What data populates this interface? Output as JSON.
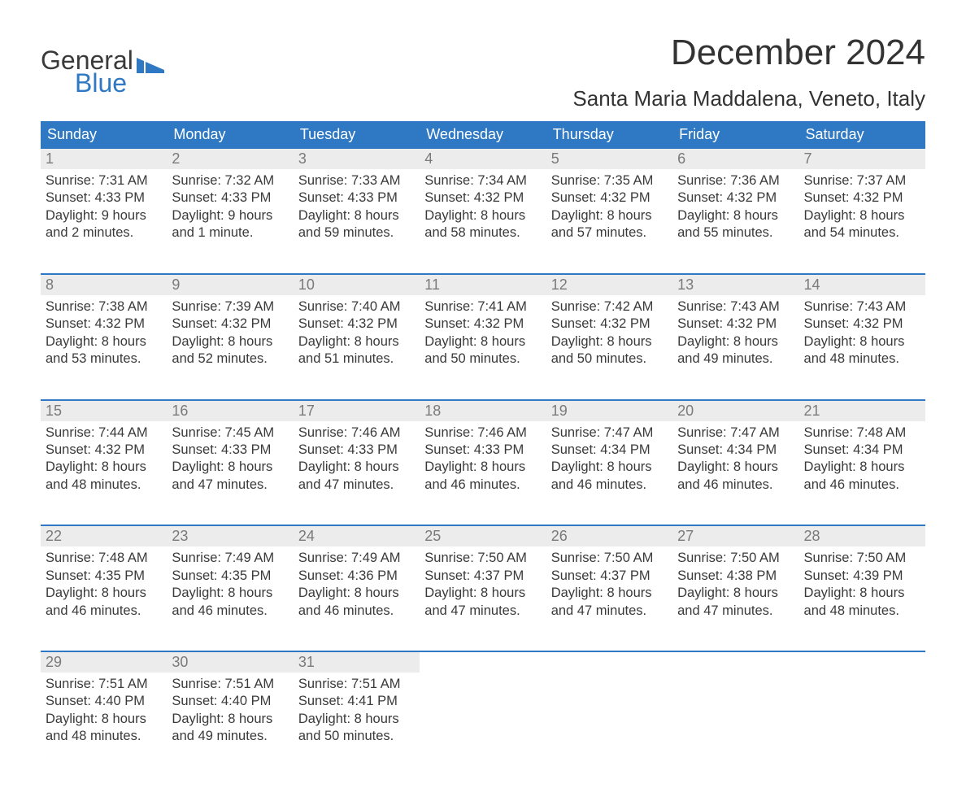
{
  "brand": {
    "line1": "General",
    "line2": "Blue",
    "accent_color": "#2f78c4"
  },
  "title": "December 2024",
  "location": "Santa Maria Maddalena, Veneto, Italy",
  "colors": {
    "header_bg": "#2f78c4",
    "header_text": "#ffffff",
    "daynum_bg": "#ececec",
    "daynum_text": "#7a7a7a",
    "body_text": "#3a3a3a",
    "week_border": "#2f78c4",
    "page_bg": "#ffffff"
  },
  "typography": {
    "title_fontsize": 44,
    "location_fontsize": 26,
    "header_fontsize": 18,
    "daynum_fontsize": 18,
    "detail_fontsize": 16.5,
    "font_family": "Arial"
  },
  "calendar": {
    "type": "table",
    "columns": [
      "Sunday",
      "Monday",
      "Tuesday",
      "Wednesday",
      "Thursday",
      "Friday",
      "Saturday"
    ],
    "weeks": [
      [
        {
          "day": "1",
          "sunrise": "Sunrise: 7:31 AM",
          "sunset": "Sunset: 4:33 PM",
          "dl1": "Daylight: 9 hours",
          "dl2": "and 2 minutes."
        },
        {
          "day": "2",
          "sunrise": "Sunrise: 7:32 AM",
          "sunset": "Sunset: 4:33 PM",
          "dl1": "Daylight: 9 hours",
          "dl2": "and 1 minute."
        },
        {
          "day": "3",
          "sunrise": "Sunrise: 7:33 AM",
          "sunset": "Sunset: 4:33 PM",
          "dl1": "Daylight: 8 hours",
          "dl2": "and 59 minutes."
        },
        {
          "day": "4",
          "sunrise": "Sunrise: 7:34 AM",
          "sunset": "Sunset: 4:32 PM",
          "dl1": "Daylight: 8 hours",
          "dl2": "and 58 minutes."
        },
        {
          "day": "5",
          "sunrise": "Sunrise: 7:35 AM",
          "sunset": "Sunset: 4:32 PM",
          "dl1": "Daylight: 8 hours",
          "dl2": "and 57 minutes."
        },
        {
          "day": "6",
          "sunrise": "Sunrise: 7:36 AM",
          "sunset": "Sunset: 4:32 PM",
          "dl1": "Daylight: 8 hours",
          "dl2": "and 55 minutes."
        },
        {
          "day": "7",
          "sunrise": "Sunrise: 7:37 AM",
          "sunset": "Sunset: 4:32 PM",
          "dl1": "Daylight: 8 hours",
          "dl2": "and 54 minutes."
        }
      ],
      [
        {
          "day": "8",
          "sunrise": "Sunrise: 7:38 AM",
          "sunset": "Sunset: 4:32 PM",
          "dl1": "Daylight: 8 hours",
          "dl2": "and 53 minutes."
        },
        {
          "day": "9",
          "sunrise": "Sunrise: 7:39 AM",
          "sunset": "Sunset: 4:32 PM",
          "dl1": "Daylight: 8 hours",
          "dl2": "and 52 minutes."
        },
        {
          "day": "10",
          "sunrise": "Sunrise: 7:40 AM",
          "sunset": "Sunset: 4:32 PM",
          "dl1": "Daylight: 8 hours",
          "dl2": "and 51 minutes."
        },
        {
          "day": "11",
          "sunrise": "Sunrise: 7:41 AM",
          "sunset": "Sunset: 4:32 PM",
          "dl1": "Daylight: 8 hours",
          "dl2": "and 50 minutes."
        },
        {
          "day": "12",
          "sunrise": "Sunrise: 7:42 AM",
          "sunset": "Sunset: 4:32 PM",
          "dl1": "Daylight: 8 hours",
          "dl2": "and 50 minutes."
        },
        {
          "day": "13",
          "sunrise": "Sunrise: 7:43 AM",
          "sunset": "Sunset: 4:32 PM",
          "dl1": "Daylight: 8 hours",
          "dl2": "and 49 minutes."
        },
        {
          "day": "14",
          "sunrise": "Sunrise: 7:43 AM",
          "sunset": "Sunset: 4:32 PM",
          "dl1": "Daylight: 8 hours",
          "dl2": "and 48 minutes."
        }
      ],
      [
        {
          "day": "15",
          "sunrise": "Sunrise: 7:44 AM",
          "sunset": "Sunset: 4:32 PM",
          "dl1": "Daylight: 8 hours",
          "dl2": "and 48 minutes."
        },
        {
          "day": "16",
          "sunrise": "Sunrise: 7:45 AM",
          "sunset": "Sunset: 4:33 PM",
          "dl1": "Daylight: 8 hours",
          "dl2": "and 47 minutes."
        },
        {
          "day": "17",
          "sunrise": "Sunrise: 7:46 AM",
          "sunset": "Sunset: 4:33 PM",
          "dl1": "Daylight: 8 hours",
          "dl2": "and 47 minutes."
        },
        {
          "day": "18",
          "sunrise": "Sunrise: 7:46 AM",
          "sunset": "Sunset: 4:33 PM",
          "dl1": "Daylight: 8 hours",
          "dl2": "and 46 minutes."
        },
        {
          "day": "19",
          "sunrise": "Sunrise: 7:47 AM",
          "sunset": "Sunset: 4:34 PM",
          "dl1": "Daylight: 8 hours",
          "dl2": "and 46 minutes."
        },
        {
          "day": "20",
          "sunrise": "Sunrise: 7:47 AM",
          "sunset": "Sunset: 4:34 PM",
          "dl1": "Daylight: 8 hours",
          "dl2": "and 46 minutes."
        },
        {
          "day": "21",
          "sunrise": "Sunrise: 7:48 AM",
          "sunset": "Sunset: 4:34 PM",
          "dl1": "Daylight: 8 hours",
          "dl2": "and 46 minutes."
        }
      ],
      [
        {
          "day": "22",
          "sunrise": "Sunrise: 7:48 AM",
          "sunset": "Sunset: 4:35 PM",
          "dl1": "Daylight: 8 hours",
          "dl2": "and 46 minutes."
        },
        {
          "day": "23",
          "sunrise": "Sunrise: 7:49 AM",
          "sunset": "Sunset: 4:35 PM",
          "dl1": "Daylight: 8 hours",
          "dl2": "and 46 minutes."
        },
        {
          "day": "24",
          "sunrise": "Sunrise: 7:49 AM",
          "sunset": "Sunset: 4:36 PM",
          "dl1": "Daylight: 8 hours",
          "dl2": "and 46 minutes."
        },
        {
          "day": "25",
          "sunrise": "Sunrise: 7:50 AM",
          "sunset": "Sunset: 4:37 PM",
          "dl1": "Daylight: 8 hours",
          "dl2": "and 47 minutes."
        },
        {
          "day": "26",
          "sunrise": "Sunrise: 7:50 AM",
          "sunset": "Sunset: 4:37 PM",
          "dl1": "Daylight: 8 hours",
          "dl2": "and 47 minutes."
        },
        {
          "day": "27",
          "sunrise": "Sunrise: 7:50 AM",
          "sunset": "Sunset: 4:38 PM",
          "dl1": "Daylight: 8 hours",
          "dl2": "and 47 minutes."
        },
        {
          "day": "28",
          "sunrise": "Sunrise: 7:50 AM",
          "sunset": "Sunset: 4:39 PM",
          "dl1": "Daylight: 8 hours",
          "dl2": "and 48 minutes."
        }
      ],
      [
        {
          "day": "29",
          "sunrise": "Sunrise: 7:51 AM",
          "sunset": "Sunset: 4:40 PM",
          "dl1": "Daylight: 8 hours",
          "dl2": "and 48 minutes."
        },
        {
          "day": "30",
          "sunrise": "Sunrise: 7:51 AM",
          "sunset": "Sunset: 4:40 PM",
          "dl1": "Daylight: 8 hours",
          "dl2": "and 49 minutes."
        },
        {
          "day": "31",
          "sunrise": "Sunrise: 7:51 AM",
          "sunset": "Sunset: 4:41 PM",
          "dl1": "Daylight: 8 hours",
          "dl2": "and 50 minutes."
        },
        null,
        null,
        null,
        null
      ]
    ]
  }
}
